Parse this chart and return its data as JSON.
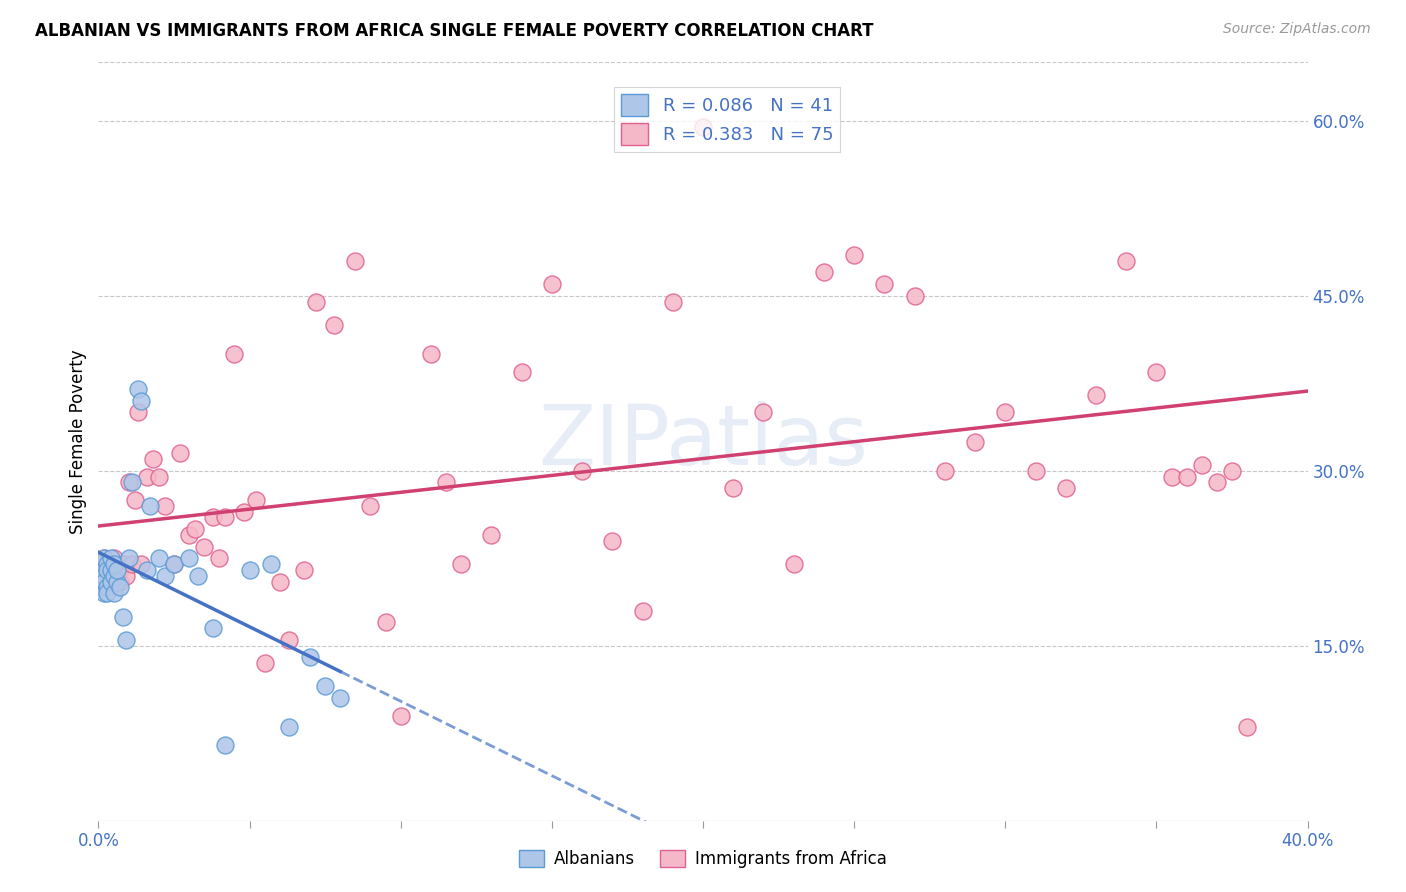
{
  "title": "ALBANIAN VS IMMIGRANTS FROM AFRICA SINGLE FEMALE POVERTY CORRELATION CHART",
  "source": "Source: ZipAtlas.com",
  "ylabel": "Single Female Poverty",
  "xlim": [
    0.0,
    0.4
  ],
  "ylim": [
    0.0,
    0.65
  ],
  "y_ticks_right": [
    0.15,
    0.3,
    0.45,
    0.6
  ],
  "y_tick_labels_right": [
    "15.0%",
    "30.0%",
    "45.0%",
    "60.0%"
  ],
  "legend_r1": "R = 0.086",
  "legend_n1": "N = 41",
  "legend_r2": "R = 0.383",
  "legend_n2": "N = 75",
  "color_albanian_fill": "#aec6e8",
  "color_albanian_edge": "#5b9bd5",
  "color_africa_fill": "#f5b8c8",
  "color_africa_edge": "#e06090",
  "color_albanian_line": "#4472c4",
  "color_africa_line": "#d04070",
  "color_r_text": "#4472c4",
  "albanian_x": [
    0.001,
    0.001,
    0.001,
    0.002,
    0.002,
    0.002,
    0.002,
    0.003,
    0.003,
    0.003,
    0.003,
    0.004,
    0.004,
    0.004,
    0.005,
    0.005,
    0.005,
    0.006,
    0.006,
    0.007,
    0.008,
    0.009,
    0.01,
    0.011,
    0.013,
    0.014,
    0.016,
    0.017,
    0.02,
    0.022,
    0.025,
    0.03,
    0.033,
    0.038,
    0.042,
    0.05,
    0.057,
    0.063,
    0.07,
    0.075,
    0.08
  ],
  "albanian_y": [
    0.22,
    0.215,
    0.2,
    0.225,
    0.21,
    0.205,
    0.195,
    0.22,
    0.215,
    0.2,
    0.195,
    0.215,
    0.205,
    0.225,
    0.21,
    0.195,
    0.22,
    0.205,
    0.215,
    0.2,
    0.175,
    0.155,
    0.225,
    0.29,
    0.37,
    0.36,
    0.215,
    0.27,
    0.225,
    0.21,
    0.22,
    0.225,
    0.21,
    0.165,
    0.065,
    0.215,
    0.22,
    0.08,
    0.14,
    0.115,
    0.105
  ],
  "africa_x": [
    0.001,
    0.002,
    0.002,
    0.003,
    0.003,
    0.004,
    0.005,
    0.005,
    0.006,
    0.007,
    0.007,
    0.008,
    0.009,
    0.01,
    0.011,
    0.012,
    0.013,
    0.014,
    0.016,
    0.018,
    0.02,
    0.022,
    0.025,
    0.027,
    0.03,
    0.032,
    0.035,
    0.038,
    0.04,
    0.042,
    0.045,
    0.048,
    0.052,
    0.055,
    0.06,
    0.063,
    0.068,
    0.072,
    0.078,
    0.085,
    0.09,
    0.095,
    0.1,
    0.11,
    0.115,
    0.12,
    0.13,
    0.14,
    0.15,
    0.16,
    0.17,
    0.18,
    0.19,
    0.2,
    0.21,
    0.22,
    0.23,
    0.24,
    0.25,
    0.26,
    0.27,
    0.28,
    0.29,
    0.3,
    0.31,
    0.32,
    0.33,
    0.34,
    0.35,
    0.355,
    0.36,
    0.365,
    0.37,
    0.375,
    0.38
  ],
  "africa_y": [
    0.22,
    0.215,
    0.225,
    0.21,
    0.205,
    0.2,
    0.225,
    0.215,
    0.21,
    0.205,
    0.215,
    0.22,
    0.21,
    0.29,
    0.22,
    0.275,
    0.35,
    0.22,
    0.295,
    0.31,
    0.295,
    0.27,
    0.22,
    0.315,
    0.245,
    0.25,
    0.235,
    0.26,
    0.225,
    0.26,
    0.4,
    0.265,
    0.275,
    0.135,
    0.205,
    0.155,
    0.215,
    0.445,
    0.425,
    0.48,
    0.27,
    0.17,
    0.09,
    0.4,
    0.29,
    0.22,
    0.245,
    0.385,
    0.46,
    0.3,
    0.24,
    0.18,
    0.445,
    0.595,
    0.285,
    0.35,
    0.22,
    0.47,
    0.485,
    0.46,
    0.45,
    0.3,
    0.325,
    0.35,
    0.3,
    0.285,
    0.365,
    0.48,
    0.385,
    0.295,
    0.295,
    0.305,
    0.29,
    0.3,
    0.08
  ]
}
